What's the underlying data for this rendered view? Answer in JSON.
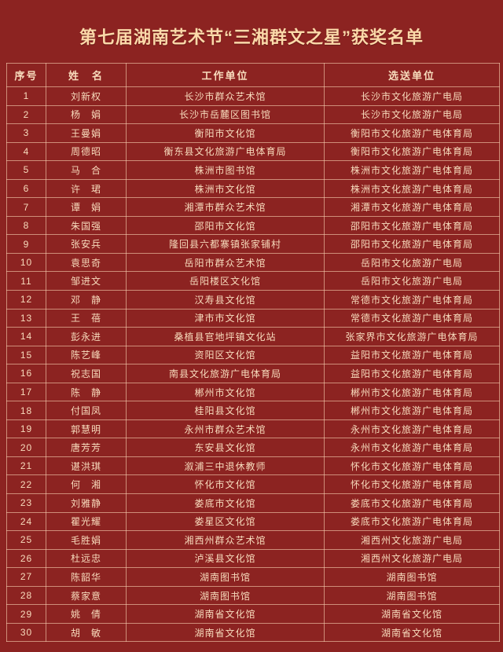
{
  "page": {
    "background_color": "#8c2321",
    "title": "第七届湖南艺术节“三湘群文之星”获奖名单",
    "title_color": "#fbd9a9"
  },
  "table": {
    "border_color": "#f7ceb0",
    "text_color": "#f8dcbd",
    "headers": [
      "序号",
      "姓　名",
      "工作单位",
      "选送单位"
    ],
    "rows": [
      [
        "1",
        "刘新权",
        "长沙市群众艺术馆",
        "长沙市文化旅游广电局"
      ],
      [
        "2",
        "杨　娟",
        "长沙市岳麓区图书馆",
        "长沙市文化旅游广电局"
      ],
      [
        "3",
        "王曼娟",
        "衡阳市文化馆",
        "衡阳市文化旅游广电体育局"
      ],
      [
        "4",
        "周德昭",
        "衡东县文化旅游广电体育局",
        "衡阳市文化旅游广电体育局"
      ],
      [
        "5",
        "马　合",
        "株洲市图书馆",
        "株洲市文化旅游广电体育局"
      ],
      [
        "6",
        "许　珺",
        "株洲市文化馆",
        "株洲市文化旅游广电体育局"
      ],
      [
        "7",
        "谭　娟",
        "湘潭市群众艺术馆",
        "湘潭市文化旅游广电体育局"
      ],
      [
        "8",
        "朱国强",
        "邵阳市文化馆",
        "邵阳市文化旅游广电体育局"
      ],
      [
        "9",
        "张安兵",
        "隆回县六都寨镇张家铺村",
        "邵阳市文化旅游广电体育局"
      ],
      [
        "10",
        "袁思奇",
        "岳阳市群众艺术馆",
        "岳阳市文化旅游广电局"
      ],
      [
        "11",
        "邹进文",
        "岳阳楼区文化馆",
        "岳阳市文化旅游广电局"
      ],
      [
        "12",
        "邓　静",
        "汉寿县文化馆",
        "常德市文化旅游广电体育局"
      ],
      [
        "13",
        "王　蓓",
        "津市市文化馆",
        "常德市文化旅游广电体育局"
      ],
      [
        "14",
        "彭永进",
        "桑植县官地坪镇文化站",
        "张家界市文化旅游广电体育局"
      ],
      [
        "15",
        "陈艺峰",
        "资阳区文化馆",
        "益阳市文化旅游广电体育局"
      ],
      [
        "16",
        "祝志国",
        "南县文化旅游广电体育局",
        "益阳市文化旅游广电体育局"
      ],
      [
        "17",
        "陈　静",
        "郴州市文化馆",
        "郴州市文化旅游广电体育局"
      ],
      [
        "18",
        "付国凤",
        "桂阳县文化馆",
        "郴州市文化旅游广电体育局"
      ],
      [
        "19",
        "郭慧明",
        "永州市群众艺术馆",
        "永州市文化旅游广电体育局"
      ],
      [
        "20",
        "唐芳芳",
        "东安县文化馆",
        "永州市文化旅游广电体育局"
      ],
      [
        "21",
        "谌洪琪",
        "溆浦三中退休教师",
        "怀化市文化旅游广电体育局"
      ],
      [
        "22",
        "何　湘",
        "怀化市文化馆",
        "怀化市文化旅游广电体育局"
      ],
      [
        "23",
        "刘雅静",
        "娄底市文化馆",
        "娄底市文化旅游广电体育局"
      ],
      [
        "24",
        "瞿光耀",
        "娄星区文化馆",
        "娄底市文化旅游广电体育局"
      ],
      [
        "25",
        "毛胜娟",
        "湘西州群众艺术馆",
        "湘西州文化旅游广电局"
      ],
      [
        "26",
        "杜远忠",
        "泸溪县文化馆",
        "湘西州文化旅游广电局"
      ],
      [
        "27",
        "陈韶华",
        "湖南图书馆",
        "湖南图书馆"
      ],
      [
        "28",
        "蔡家意",
        "湖南图书馆",
        "湖南图书馆"
      ],
      [
        "29",
        "姚　倩",
        "湖南省文化馆",
        "湖南省文化馆"
      ],
      [
        "30",
        "胡　敏",
        "湖南省文化馆",
        "湖南省文化馆"
      ]
    ]
  }
}
